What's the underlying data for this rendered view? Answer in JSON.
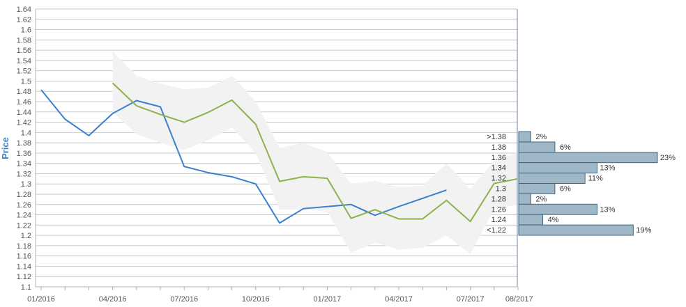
{
  "chart_data": {
    "type": "line",
    "ylabel": "Price",
    "ylim": [
      1.1,
      1.64
    ],
    "y_ticks": [
      "1.1",
      "1.12",
      "1.14",
      "1.16",
      "1.18",
      "1.2",
      "1.22",
      "1.24",
      "1.26",
      "1.28",
      "1.3",
      "1.32",
      "1.34",
      "1.36",
      "1.38",
      "1.4",
      "1.42",
      "1.44",
      "1.46",
      "1.48",
      "1.5",
      "1.52",
      "1.54",
      "1.56",
      "1.58",
      "1.6",
      "1.62",
      "1.64"
    ],
    "x_ticks": [
      "01/2016",
      "04/2016",
      "07/2016",
      "10/2016",
      "01/2017",
      "04/2017",
      "07/2017",
      "08/2017"
    ],
    "grid": true,
    "colors": {
      "series_blue": "#3a7fd0",
      "series_green": "#8db14b",
      "band": "#f2f2f2",
      "histogram_fill": "#9fb7c7",
      "histogram_stroke": "#41647c",
      "grid": "#c8c8c8",
      "axis_text": "#555555",
      "ylabel": "#3a7fd0"
    },
    "series": [
      {
        "values": [
          [
            "2016-01-01",
            1.483
          ],
          [
            "2016-02-01",
            1.426
          ],
          [
            "2016-03-01",
            1.394
          ],
          [
            "2016-04-01",
            1.437
          ],
          [
            "2016-05-01",
            1.462
          ],
          [
            "2016-06-01",
            1.45
          ],
          [
            "2016-07-01",
            1.334
          ],
          [
            "2016-08-01",
            1.322
          ],
          [
            "2016-09-01",
            1.314
          ],
          [
            "2016-10-01",
            1.3
          ],
          [
            "2016-11-01",
            1.224
          ],
          [
            "2016-12-01",
            1.252
          ],
          [
            "2017-01-01",
            1.256
          ],
          [
            "2017-02-01",
            1.26
          ],
          [
            "2017-03-01",
            1.239
          ],
          [
            "2017-04-01",
            1.256
          ],
          [
            "2017-05-01",
            1.272
          ],
          [
            "2017-06-01",
            1.288
          ]
        ]
      },
      {
        "values": [
          [
            "2016-04-01",
            1.496
          ],
          [
            "2016-05-01",
            1.452
          ],
          [
            "2016-06-01",
            1.435
          ],
          [
            "2016-07-01",
            1.42
          ],
          [
            "2016-08-01",
            1.439
          ],
          [
            "2016-09-01",
            1.463
          ],
          [
            "2016-10-01",
            1.416
          ],
          [
            "2016-11-01",
            1.305
          ],
          [
            "2016-12-01",
            1.314
          ],
          [
            "2017-01-01",
            1.311
          ],
          [
            "2017-02-01",
            1.233
          ],
          [
            "2017-03-01",
            1.25
          ],
          [
            "2017-04-01",
            1.232
          ],
          [
            "2017-05-01",
            1.232
          ],
          [
            "2017-06-01",
            1.268
          ],
          [
            "2017-07-01",
            1.227
          ],
          [
            "2017-08-01",
            1.301
          ],
          [
            "2017-09-01",
            1.31
          ]
        ]
      }
    ],
    "band": {
      "upper": [
        [
          "2016-04-01",
          1.558
        ],
        [
          "2016-05-01",
          1.51
        ],
        [
          "2016-06-01",
          1.495
        ],
        [
          "2016-07-01",
          1.484
        ],
        [
          "2016-08-01",
          1.487
        ],
        [
          "2016-09-01",
          1.51
        ],
        [
          "2016-10-01",
          1.46
        ],
        [
          "2016-11-01",
          1.37
        ],
        [
          "2016-12-01",
          1.38
        ],
        [
          "2017-01-01",
          1.362
        ],
        [
          "2017-02-01",
          1.3
        ],
        [
          "2017-03-01",
          1.306
        ],
        [
          "2017-04-01",
          1.294
        ],
        [
          "2017-05-01",
          1.296
        ],
        [
          "2017-06-01",
          1.34
        ],
        [
          "2017-07-01",
          1.29
        ],
        [
          "2017-08-01",
          1.345
        ],
        [
          "2017-09-01",
          1.362
        ]
      ],
      "lower": [
        [
          "2016-04-01",
          1.44
        ],
        [
          "2016-05-01",
          1.397
        ],
        [
          "2016-06-01",
          1.38
        ],
        [
          "2016-07-01",
          1.366
        ],
        [
          "2016-08-01",
          1.385
        ],
        [
          "2016-09-01",
          1.41
        ],
        [
          "2016-10-01",
          1.36
        ],
        [
          "2016-11-01",
          1.25
        ],
        [
          "2016-12-01",
          1.25
        ],
        [
          "2017-01-01",
          1.246
        ],
        [
          "2017-02-01",
          1.166
        ],
        [
          "2017-03-01",
          1.186
        ],
        [
          "2017-04-01",
          1.172
        ],
        [
          "2017-05-01",
          1.176
        ],
        [
          "2017-06-01",
          1.2
        ],
        [
          "2017-07-01",
          1.164
        ],
        [
          "2017-08-01",
          1.25
        ],
        [
          "2017-09-01",
          1.26
        ]
      ]
    },
    "histogram": [
      {
        "label": ">1.38",
        "pct_label": "2%",
        "pct": 2
      },
      {
        "label": "1.38",
        "pct_label": "6%",
        "pct": 6
      },
      {
        "label": "1.36",
        "pct_label": "23%",
        "pct": 23
      },
      {
        "label": "1.34",
        "pct_label": "13%",
        "pct": 13
      },
      {
        "label": "1.32",
        "pct_label": "11%",
        "pct": 11
      },
      {
        "label": "1.3",
        "pct_label": "6%",
        "pct": 6
      },
      {
        "label": "1.28",
        "pct_label": "2%",
        "pct": 2
      },
      {
        "label": "1.26",
        "pct_label": "13%",
        "pct": 13
      },
      {
        "label": "1.24",
        "pct_label": "4%",
        "pct": 4
      },
      {
        "label": "<1.22",
        "pct_label": "19%",
        "pct": 19
      }
    ]
  }
}
